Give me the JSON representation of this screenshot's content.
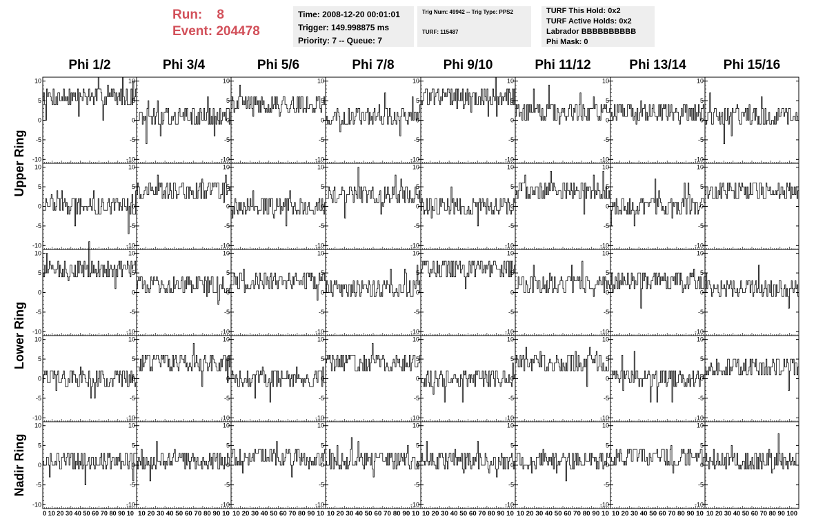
{
  "header": {
    "run_label": "Run:",
    "run_value": "8",
    "event_label": "Event:",
    "event_value": "204478",
    "time": "Time: 2008-12-20 00:01:01",
    "trigger": "Trigger: 149.998875 ms",
    "priority": "Priority: 7 -- Queue: 7",
    "trig_line": "Trig Num: 49942 -- Trig Type: PPS2",
    "turf_line": "TURF: 115487",
    "turf_this_hold": "TURF This Hold: 0x2",
    "turf_active_holds": "TURF Active Holds: 0x2",
    "labrador": "Labrador BBBBBBBBBB",
    "phi_mask": "Phi Mask: 0"
  },
  "columns": [
    "Phi 1/2",
    "Phi 3/4",
    "Phi 5/6",
    "Phi 7/8",
    "Phi 9/10",
    "Phi 11/12",
    "Phi 13/14",
    "Phi 15/16"
  ],
  "rows": [
    "Upper Ring",
    "Lower Ring",
    "Nadir Ring"
  ],
  "colors": {
    "title": "#d2505a",
    "info_bg": "#eeeeee",
    "trace": "#000000"
  },
  "chart_data": {
    "type": "line",
    "layout": "grid of 5 rows x 8 columns of step traces",
    "xlim": [
      0,
      100
    ],
    "ylim": [
      -11,
      11
    ],
    "y_ticks": [
      -10,
      -5,
      0,
      5,
      10
    ],
    "x_tick_labels": [
      "0",
      "10",
      "20",
      "30",
      "40",
      "50",
      "60",
      "70",
      "80",
      "90",
      "100"
    ],
    "x_tick_label_strings_bottom": [
      "0 10 20 30 40 50 60 70 80 90 10",
      "10 20 30 40 50 60 70 80 90 10",
      "10 20 30 40 50 60 70 80 90 10",
      "10 20 30 40 50 60 70 80 90 10",
      "10 20 30 40 50 60 70 80 90 10",
      "10 20 30 40 50 60 70 80 90 10",
      "10 20 30 40 50 60 70 80 90 10",
      "10 20 30 40 50 60 70 80 90 100"
    ],
    "panel_baselines": [
      [
        6,
        1,
        4,
        1,
        6,
        2,
        2,
        1
      ],
      [
        0,
        4,
        0,
        3,
        0,
        4,
        0,
        4
      ],
      [
        6,
        2,
        3,
        1,
        6,
        2,
        3,
        1
      ],
      [
        0,
        4,
        0,
        4,
        0,
        4,
        0,
        3
      ],
      [
        1,
        1,
        2,
        1,
        1,
        1,
        2,
        1
      ]
    ],
    "panel_spread": 2.5
  }
}
